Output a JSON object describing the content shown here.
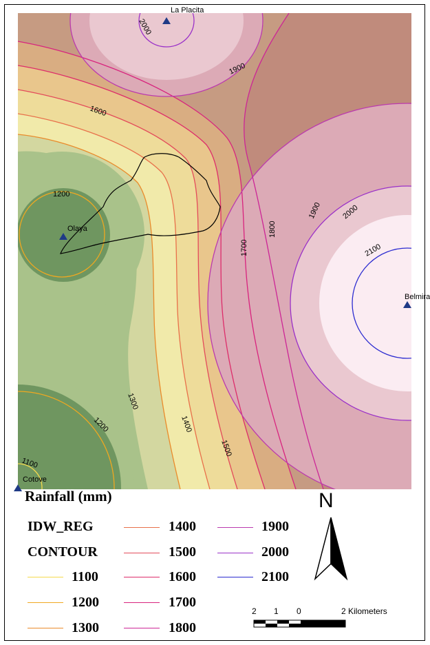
{
  "map": {
    "stations": [
      {
        "name": "La Placita"
      },
      {
        "name": "Olaya"
      },
      {
        "name": "Belmira"
      },
      {
        "name": "Cotove"
      }
    ],
    "contour_labels": [
      "2000",
      "1900",
      "1600",
      "1200",
      "1900",
      "2000",
      "2100",
      "1800",
      "1700",
      "1300",
      "1400",
      "1500",
      "1200",
      "1100"
    ],
    "zone_colors": {
      "z1100": "#6f9660",
      "z1200": "#a9c28a",
      "z1300": "#d3d7a0",
      "z1400": "#f1eaaa",
      "z1500": "#eedc9a",
      "z1600": "#e9c68c",
      "z1700": "#d9ad82",
      "z1800": "#c69b82",
      "z1900": "#c08b7c",
      "z2000": "#dcaab6",
      "z2100": "#eac8d0",
      "z2200": "#fbecf2"
    }
  },
  "legend": {
    "title": "Rainfall (mm)",
    "layer_idw": "IDW_REG",
    "layer_contour": "CONTOUR",
    "items": [
      {
        "label": "1100",
        "color": "#f5d94c"
      },
      {
        "label": "1200",
        "color": "#f0a820"
      },
      {
        "label": "1300",
        "color": "#ea8a2a"
      },
      {
        "label": "1400",
        "color": "#e8704a"
      },
      {
        "label": "1500",
        "color": "#e34a5a"
      },
      {
        "label": "1600",
        "color": "#dd2c6a"
      },
      {
        "label": "1700",
        "color": "#d8237e"
      },
      {
        "label": "1800",
        "color": "#cc2596"
      },
      {
        "label": "1900",
        "color": "#bb3aae"
      },
      {
        "label": "2000",
        "color": "#9a30c8"
      },
      {
        "label": "2100",
        "color": "#2a2ad0"
      }
    ]
  },
  "north_arrow": {
    "letter": "N"
  },
  "scale_bar": {
    "labels": [
      "2",
      "1",
      "0",
      "2 Kilometers"
    ]
  }
}
